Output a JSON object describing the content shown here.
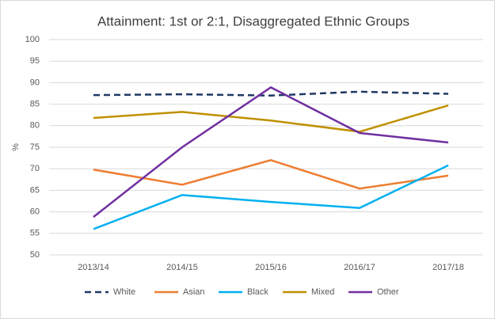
{
  "chart_data": {
    "type": "line",
    "title": "Attainment: 1st or 2:1, Disaggregated Ethnic Groups",
    "y_label": "%",
    "categories": [
      "2013/14",
      "2014/15",
      "2015/16",
      "2016/17",
      "2017/18"
    ],
    "series": [
      {
        "name": "White",
        "color": "#1f3864",
        "dashed": true,
        "values": [
          87.1,
          87.3,
          87.0,
          87.9,
          87.4
        ]
      },
      {
        "name": "Asian",
        "color": "#ed7d31",
        "values": [
          69.8,
          66.3,
          72.0,
          65.4,
          68.4
        ]
      },
      {
        "name": "Black",
        "color": "#00b0f0",
        "values": [
          56.0,
          63.9,
          62.3,
          60.9,
          70.8
        ]
      },
      {
        "name": "Mixed",
        "color": "#bf9000",
        "values": [
          81.8,
          83.2,
          81.2,
          78.6,
          84.7
        ]
      },
      {
        "name": "Other",
        "color": "#7030a0",
        "values": [
          58.8,
          75.0,
          88.9,
          78.3,
          76.1
        ]
      }
    ],
    "ylim": [
      50,
      100
    ],
    "yticks": [
      50,
      55,
      60,
      65,
      70,
      75,
      80,
      85,
      90,
      95,
      100
    ],
    "grid": true,
    "legend": "bottom"
  }
}
